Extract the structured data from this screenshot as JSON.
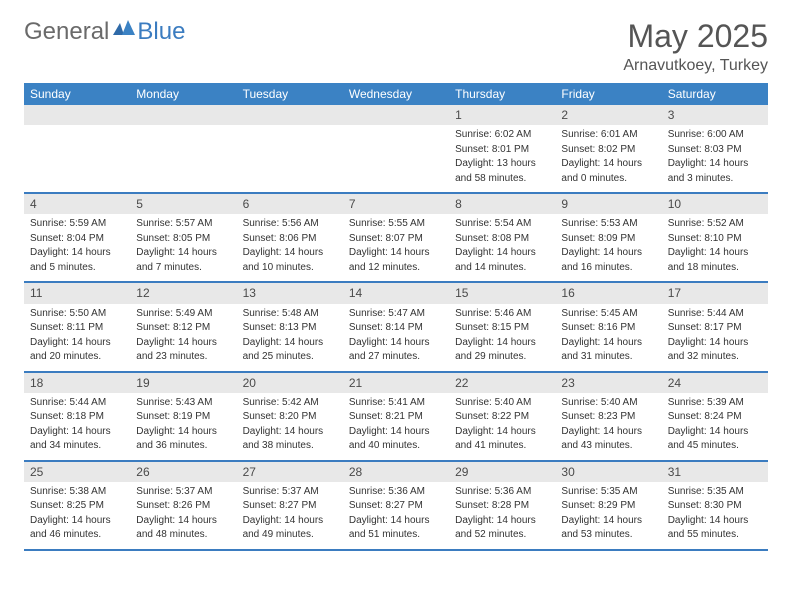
{
  "brand": {
    "part1": "General",
    "part2": "Blue"
  },
  "title": "May 2025",
  "location": "Arnavutkoey, Turkey",
  "weekday_header_bg": "#3b82c4",
  "weekday_header_fg": "#ffffff",
  "row_border_color": "#3b7cc0",
  "daynum_bg": "#e8e8e8",
  "weekdays": [
    "Sunday",
    "Monday",
    "Tuesday",
    "Wednesday",
    "Thursday",
    "Friday",
    "Saturday"
  ],
  "weeks": [
    [
      {
        "empty": true
      },
      {
        "empty": true
      },
      {
        "empty": true
      },
      {
        "empty": true
      },
      {
        "day": "1",
        "sunrise": "Sunrise: 6:02 AM",
        "sunset": "Sunset: 8:01 PM",
        "daylight1": "Daylight: 13 hours",
        "daylight2": "and 58 minutes."
      },
      {
        "day": "2",
        "sunrise": "Sunrise: 6:01 AM",
        "sunset": "Sunset: 8:02 PM",
        "daylight1": "Daylight: 14 hours",
        "daylight2": "and 0 minutes."
      },
      {
        "day": "3",
        "sunrise": "Sunrise: 6:00 AM",
        "sunset": "Sunset: 8:03 PM",
        "daylight1": "Daylight: 14 hours",
        "daylight2": "and 3 minutes."
      }
    ],
    [
      {
        "day": "4",
        "sunrise": "Sunrise: 5:59 AM",
        "sunset": "Sunset: 8:04 PM",
        "daylight1": "Daylight: 14 hours",
        "daylight2": "and 5 minutes."
      },
      {
        "day": "5",
        "sunrise": "Sunrise: 5:57 AM",
        "sunset": "Sunset: 8:05 PM",
        "daylight1": "Daylight: 14 hours",
        "daylight2": "and 7 minutes."
      },
      {
        "day": "6",
        "sunrise": "Sunrise: 5:56 AM",
        "sunset": "Sunset: 8:06 PM",
        "daylight1": "Daylight: 14 hours",
        "daylight2": "and 10 minutes."
      },
      {
        "day": "7",
        "sunrise": "Sunrise: 5:55 AM",
        "sunset": "Sunset: 8:07 PM",
        "daylight1": "Daylight: 14 hours",
        "daylight2": "and 12 minutes."
      },
      {
        "day": "8",
        "sunrise": "Sunrise: 5:54 AM",
        "sunset": "Sunset: 8:08 PM",
        "daylight1": "Daylight: 14 hours",
        "daylight2": "and 14 minutes."
      },
      {
        "day": "9",
        "sunrise": "Sunrise: 5:53 AM",
        "sunset": "Sunset: 8:09 PM",
        "daylight1": "Daylight: 14 hours",
        "daylight2": "and 16 minutes."
      },
      {
        "day": "10",
        "sunrise": "Sunrise: 5:52 AM",
        "sunset": "Sunset: 8:10 PM",
        "daylight1": "Daylight: 14 hours",
        "daylight2": "and 18 minutes."
      }
    ],
    [
      {
        "day": "11",
        "sunrise": "Sunrise: 5:50 AM",
        "sunset": "Sunset: 8:11 PM",
        "daylight1": "Daylight: 14 hours",
        "daylight2": "and 20 minutes."
      },
      {
        "day": "12",
        "sunrise": "Sunrise: 5:49 AM",
        "sunset": "Sunset: 8:12 PM",
        "daylight1": "Daylight: 14 hours",
        "daylight2": "and 23 minutes."
      },
      {
        "day": "13",
        "sunrise": "Sunrise: 5:48 AM",
        "sunset": "Sunset: 8:13 PM",
        "daylight1": "Daylight: 14 hours",
        "daylight2": "and 25 minutes."
      },
      {
        "day": "14",
        "sunrise": "Sunrise: 5:47 AM",
        "sunset": "Sunset: 8:14 PM",
        "daylight1": "Daylight: 14 hours",
        "daylight2": "and 27 minutes."
      },
      {
        "day": "15",
        "sunrise": "Sunrise: 5:46 AM",
        "sunset": "Sunset: 8:15 PM",
        "daylight1": "Daylight: 14 hours",
        "daylight2": "and 29 minutes."
      },
      {
        "day": "16",
        "sunrise": "Sunrise: 5:45 AM",
        "sunset": "Sunset: 8:16 PM",
        "daylight1": "Daylight: 14 hours",
        "daylight2": "and 31 minutes."
      },
      {
        "day": "17",
        "sunrise": "Sunrise: 5:44 AM",
        "sunset": "Sunset: 8:17 PM",
        "daylight1": "Daylight: 14 hours",
        "daylight2": "and 32 minutes."
      }
    ],
    [
      {
        "day": "18",
        "sunrise": "Sunrise: 5:44 AM",
        "sunset": "Sunset: 8:18 PM",
        "daylight1": "Daylight: 14 hours",
        "daylight2": "and 34 minutes."
      },
      {
        "day": "19",
        "sunrise": "Sunrise: 5:43 AM",
        "sunset": "Sunset: 8:19 PM",
        "daylight1": "Daylight: 14 hours",
        "daylight2": "and 36 minutes."
      },
      {
        "day": "20",
        "sunrise": "Sunrise: 5:42 AM",
        "sunset": "Sunset: 8:20 PM",
        "daylight1": "Daylight: 14 hours",
        "daylight2": "and 38 minutes."
      },
      {
        "day": "21",
        "sunrise": "Sunrise: 5:41 AM",
        "sunset": "Sunset: 8:21 PM",
        "daylight1": "Daylight: 14 hours",
        "daylight2": "and 40 minutes."
      },
      {
        "day": "22",
        "sunrise": "Sunrise: 5:40 AM",
        "sunset": "Sunset: 8:22 PM",
        "daylight1": "Daylight: 14 hours",
        "daylight2": "and 41 minutes."
      },
      {
        "day": "23",
        "sunrise": "Sunrise: 5:40 AM",
        "sunset": "Sunset: 8:23 PM",
        "daylight1": "Daylight: 14 hours",
        "daylight2": "and 43 minutes."
      },
      {
        "day": "24",
        "sunrise": "Sunrise: 5:39 AM",
        "sunset": "Sunset: 8:24 PM",
        "daylight1": "Daylight: 14 hours",
        "daylight2": "and 45 minutes."
      }
    ],
    [
      {
        "day": "25",
        "sunrise": "Sunrise: 5:38 AM",
        "sunset": "Sunset: 8:25 PM",
        "daylight1": "Daylight: 14 hours",
        "daylight2": "and 46 minutes."
      },
      {
        "day": "26",
        "sunrise": "Sunrise: 5:37 AM",
        "sunset": "Sunset: 8:26 PM",
        "daylight1": "Daylight: 14 hours",
        "daylight2": "and 48 minutes."
      },
      {
        "day": "27",
        "sunrise": "Sunrise: 5:37 AM",
        "sunset": "Sunset: 8:27 PM",
        "daylight1": "Daylight: 14 hours",
        "daylight2": "and 49 minutes."
      },
      {
        "day": "28",
        "sunrise": "Sunrise: 5:36 AM",
        "sunset": "Sunset: 8:27 PM",
        "daylight1": "Daylight: 14 hours",
        "daylight2": "and 51 minutes."
      },
      {
        "day": "29",
        "sunrise": "Sunrise: 5:36 AM",
        "sunset": "Sunset: 8:28 PM",
        "daylight1": "Daylight: 14 hours",
        "daylight2": "and 52 minutes."
      },
      {
        "day": "30",
        "sunrise": "Sunrise: 5:35 AM",
        "sunset": "Sunset: 8:29 PM",
        "daylight1": "Daylight: 14 hours",
        "daylight2": "and 53 minutes."
      },
      {
        "day": "31",
        "sunrise": "Sunrise: 5:35 AM",
        "sunset": "Sunset: 8:30 PM",
        "daylight1": "Daylight: 14 hours",
        "daylight2": "and 55 minutes."
      }
    ]
  ]
}
